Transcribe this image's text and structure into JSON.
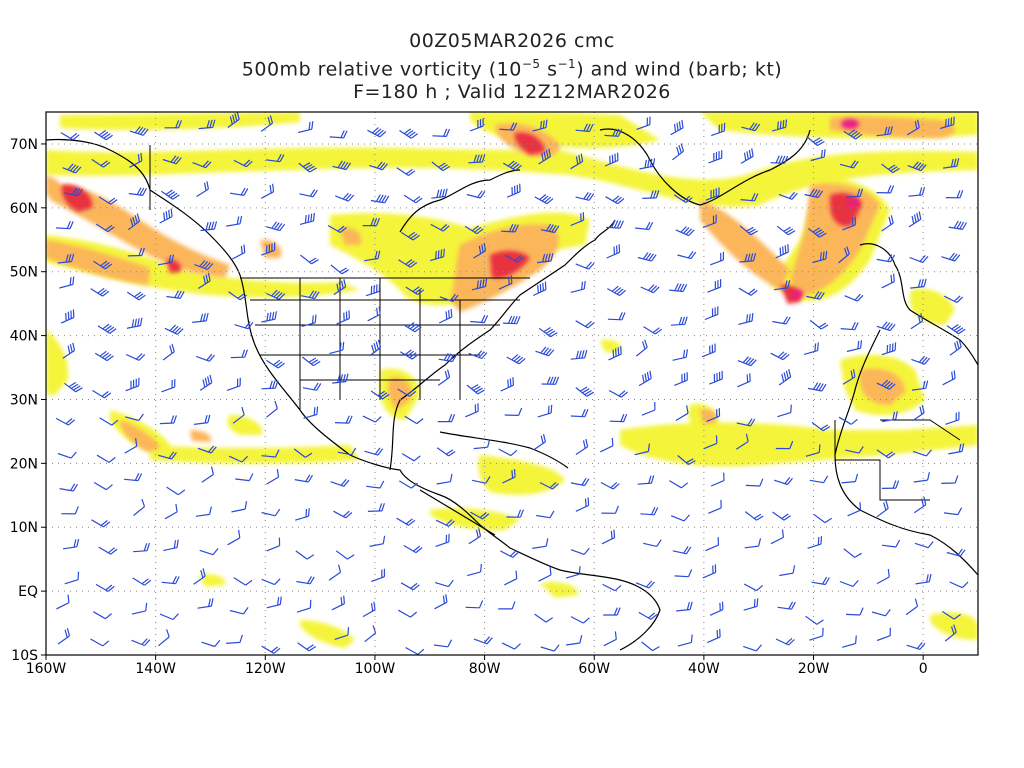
{
  "title": {
    "line1": "00Z05MAR2026 cmc",
    "line2_pre": "500mb relative vorticity (10",
    "line2_exp1": "−5",
    "line2_mid": " s",
    "line2_exp2": "−1",
    "line2_post": ") and wind (barb; kt)",
    "line3": "F=180 h ; Valid 12Z12MAR2026"
  },
  "axes": {
    "lon_range": [
      -160,
      10
    ],
    "lat_range": [
      -10,
      75
    ],
    "x_ticks": [
      {
        "lon": -160,
        "label": "160W"
      },
      {
        "lon": -140,
        "label": "140W"
      },
      {
        "lon": -120,
        "label": "120W"
      },
      {
        "lon": -100,
        "label": "100W"
      },
      {
        "lon": -80,
        "label": "80W"
      },
      {
        "lon": -60,
        "label": "60W"
      },
      {
        "lon": -40,
        "label": "40W"
      },
      {
        "lon": -20,
        "label": "20W"
      },
      {
        "lon": 0,
        "label": "0"
      }
    ],
    "y_ticks": [
      {
        "lat": 70,
        "label": "70N"
      },
      {
        "lat": 60,
        "label": "60N"
      },
      {
        "lat": 50,
        "label": "50N"
      },
      {
        "lat": 40,
        "label": "40N"
      },
      {
        "lat": 30,
        "label": "30N"
      },
      {
        "lat": 20,
        "label": "20N"
      },
      {
        "lat": 10,
        "label": "10N"
      },
      {
        "lat": 0,
        "label": "EQ"
      },
      {
        "lat": -10,
        "label": "10S"
      }
    ],
    "grid": "dotted"
  },
  "colors": {
    "vort_low": "#f4f43a",
    "vort_mid": "#fbd06a",
    "vort_high": "#f59a55",
    "vort_max": "#e8303f",
    "vort_peak": "#e81a8a",
    "barb": "#2a4bd8",
    "coast": "#000000",
    "grid": "#888888"
  }
}
